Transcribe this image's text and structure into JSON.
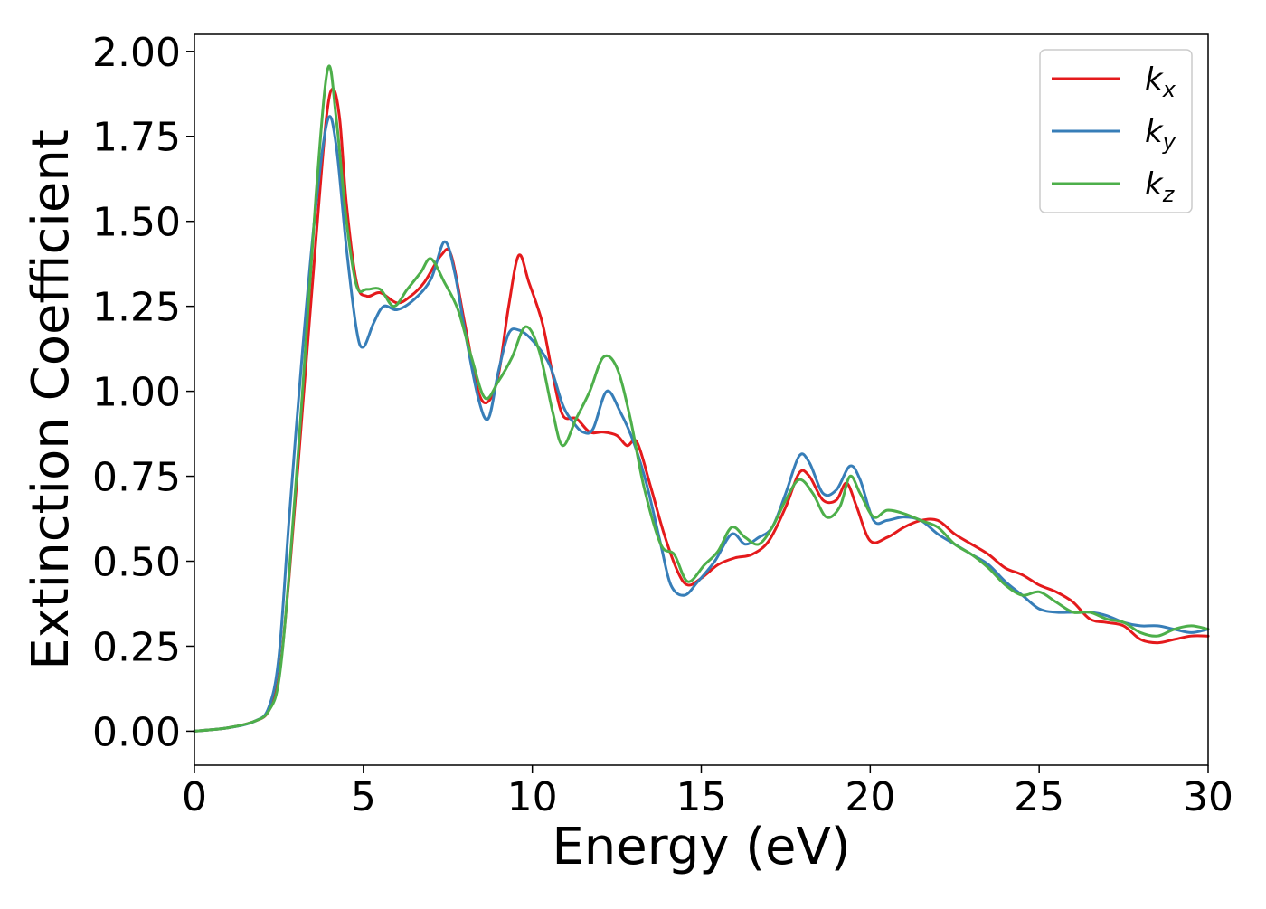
{
  "chart_data": {
    "type": "line",
    "title": "",
    "xlabel": "Energy (eV)",
    "ylabel": "Extinction Coefficient",
    "xlim": [
      0,
      30
    ],
    "ylim": [
      -0.1,
      2.05
    ],
    "x_ticks": [
      0,
      5,
      10,
      15,
      20,
      25,
      30
    ],
    "x_tick_labels": [
      "0",
      "5",
      "10",
      "15",
      "20",
      "25",
      "30"
    ],
    "y_ticks": [
      0,
      0.25,
      0.5,
      0.75,
      1.0,
      1.25,
      1.5,
      1.75,
      2.0
    ],
    "y_tick_labels": [
      "0.00",
      "0.25",
      "0.50",
      "0.75",
      "1.00",
      "1.25",
      "1.50",
      "1.75",
      "2.00"
    ],
    "grid": false,
    "legend_position": "top-right",
    "series": [
      {
        "name": "k_x",
        "legend_base": "k",
        "legend_sub": "x",
        "color": "#e41a1c",
        "points": [
          [
            0,
            0
          ],
          [
            1,
            0.01
          ],
          [
            1.8,
            0.03
          ],
          [
            2.2,
            0.06
          ],
          [
            2.5,
            0.16
          ],
          [
            2.8,
            0.45
          ],
          [
            3.2,
            0.95
          ],
          [
            3.6,
            1.45
          ],
          [
            3.9,
            1.8
          ],
          [
            4.1,
            1.89
          ],
          [
            4.3,
            1.8
          ],
          [
            4.5,
            1.55
          ],
          [
            4.8,
            1.32
          ],
          [
            5.1,
            1.28
          ],
          [
            5.5,
            1.29
          ],
          [
            6,
            1.26
          ],
          [
            6.4,
            1.28
          ],
          [
            6.8,
            1.32
          ],
          [
            7.3,
            1.4
          ],
          [
            7.6,
            1.4
          ],
          [
            8,
            1.2
          ],
          [
            8.4,
            1.0
          ],
          [
            8.7,
            0.97
          ],
          [
            9.0,
            1.05
          ],
          [
            9.3,
            1.25
          ],
          [
            9.6,
            1.4
          ],
          [
            9.9,
            1.32
          ],
          [
            10.3,
            1.2
          ],
          [
            10.6,
            1.05
          ],
          [
            10.9,
            0.93
          ],
          [
            11.3,
            0.92
          ],
          [
            11.7,
            0.88
          ],
          [
            12.1,
            0.88
          ],
          [
            12.5,
            0.87
          ],
          [
            12.8,
            0.84
          ],
          [
            13.1,
            0.85
          ],
          [
            13.5,
            0.72
          ],
          [
            13.9,
            0.58
          ],
          [
            14.3,
            0.47
          ],
          [
            14.6,
            0.43
          ],
          [
            15,
            0.45
          ],
          [
            15.5,
            0.49
          ],
          [
            16,
            0.51
          ],
          [
            16.5,
            0.52
          ],
          [
            17,
            0.56
          ],
          [
            17.5,
            0.66
          ],
          [
            17.9,
            0.76
          ],
          [
            18.2,
            0.75
          ],
          [
            18.6,
            0.68
          ],
          [
            19,
            0.68
          ],
          [
            19.3,
            0.73
          ],
          [
            19.6,
            0.66
          ],
          [
            20,
            0.56
          ],
          [
            20.5,
            0.57
          ],
          [
            21,
            0.6
          ],
          [
            21.5,
            0.62
          ],
          [
            22,
            0.62
          ],
          [
            22.5,
            0.58
          ],
          [
            23,
            0.55
          ],
          [
            23.5,
            0.52
          ],
          [
            24,
            0.48
          ],
          [
            24.5,
            0.46
          ],
          [
            25,
            0.43
          ],
          [
            25.5,
            0.41
          ],
          [
            26,
            0.38
          ],
          [
            26.5,
            0.33
          ],
          [
            27,
            0.32
          ],
          [
            27.5,
            0.31
          ],
          [
            28,
            0.27
          ],
          [
            28.5,
            0.26
          ],
          [
            29,
            0.27
          ],
          [
            29.5,
            0.28
          ],
          [
            30,
            0.28
          ]
        ]
      },
      {
        "name": "k_y",
        "legend_base": "k",
        "legend_sub": "y",
        "color": "#377eb8",
        "points": [
          [
            0,
            0
          ],
          [
            1,
            0.01
          ],
          [
            1.8,
            0.03
          ],
          [
            2.2,
            0.07
          ],
          [
            2.5,
            0.22
          ],
          [
            2.8,
            0.62
          ],
          [
            3.2,
            1.12
          ],
          [
            3.6,
            1.55
          ],
          [
            3.95,
            1.8
          ],
          [
            4.2,
            1.72
          ],
          [
            4.5,
            1.42
          ],
          [
            4.8,
            1.18
          ],
          [
            5.0,
            1.13
          ],
          [
            5.3,
            1.2
          ],
          [
            5.6,
            1.25
          ],
          [
            6,
            1.24
          ],
          [
            6.5,
            1.27
          ],
          [
            7,
            1.33
          ],
          [
            7.4,
            1.44
          ],
          [
            7.7,
            1.35
          ],
          [
            8,
            1.18
          ],
          [
            8.4,
            0.98
          ],
          [
            8.7,
            0.92
          ],
          [
            9.0,
            1.06
          ],
          [
            9.3,
            1.17
          ],
          [
            9.6,
            1.18
          ],
          [
            10,
            1.15
          ],
          [
            10.5,
            1.08
          ],
          [
            10.9,
            0.96
          ],
          [
            11.2,
            0.91
          ],
          [
            11.5,
            0.88
          ],
          [
            11.8,
            0.89
          ],
          [
            12.2,
            1.0
          ],
          [
            12.6,
            0.94
          ],
          [
            13,
            0.85
          ],
          [
            13.4,
            0.72
          ],
          [
            13.8,
            0.55
          ],
          [
            14.1,
            0.43
          ],
          [
            14.5,
            0.4
          ],
          [
            14.9,
            0.44
          ],
          [
            15.4,
            0.5
          ],
          [
            15.9,
            0.58
          ],
          [
            16.3,
            0.55
          ],
          [
            16.7,
            0.57
          ],
          [
            17.1,
            0.6
          ],
          [
            17.5,
            0.7
          ],
          [
            17.9,
            0.81
          ],
          [
            18.2,
            0.79
          ],
          [
            18.6,
            0.7
          ],
          [
            19,
            0.71
          ],
          [
            19.4,
            0.78
          ],
          [
            19.7,
            0.74
          ],
          [
            20.1,
            0.62
          ],
          [
            20.5,
            0.62
          ],
          [
            21,
            0.63
          ],
          [
            21.5,
            0.62
          ],
          [
            22,
            0.58
          ],
          [
            22.5,
            0.55
          ],
          [
            23,
            0.52
          ],
          [
            23.5,
            0.49
          ],
          [
            24,
            0.44
          ],
          [
            24.5,
            0.4
          ],
          [
            25,
            0.36
          ],
          [
            25.5,
            0.35
          ],
          [
            26,
            0.35
          ],
          [
            26.5,
            0.35
          ],
          [
            27,
            0.34
          ],
          [
            27.5,
            0.32
          ],
          [
            28,
            0.31
          ],
          [
            28.5,
            0.31
          ],
          [
            29,
            0.3
          ],
          [
            29.5,
            0.29
          ],
          [
            30,
            0.3
          ]
        ]
      },
      {
        "name": "k_z",
        "legend_base": "k",
        "legend_sub": "z",
        "color": "#4daf4a",
        "points": [
          [
            0,
            0
          ],
          [
            1,
            0.01
          ],
          [
            1.8,
            0.03
          ],
          [
            2.2,
            0.06
          ],
          [
            2.5,
            0.15
          ],
          [
            2.8,
            0.46
          ],
          [
            3.2,
            1.0
          ],
          [
            3.6,
            1.58
          ],
          [
            3.95,
            1.95
          ],
          [
            4.2,
            1.8
          ],
          [
            4.5,
            1.5
          ],
          [
            4.8,
            1.31
          ],
          [
            5.1,
            1.3
          ],
          [
            5.5,
            1.3
          ],
          [
            5.9,
            1.25
          ],
          [
            6.3,
            1.3
          ],
          [
            6.7,
            1.35
          ],
          [
            7.0,
            1.39
          ],
          [
            7.4,
            1.32
          ],
          [
            7.8,
            1.24
          ],
          [
            8.2,
            1.1
          ],
          [
            8.6,
            0.98
          ],
          [
            9.0,
            1.03
          ],
          [
            9.4,
            1.1
          ],
          [
            9.8,
            1.19
          ],
          [
            10.2,
            1.12
          ],
          [
            10.6,
            0.94
          ],
          [
            10.9,
            0.84
          ],
          [
            11.3,
            0.92
          ],
          [
            11.7,
            1.0
          ],
          [
            12.1,
            1.1
          ],
          [
            12.5,
            1.07
          ],
          [
            12.9,
            0.92
          ],
          [
            13.3,
            0.72
          ],
          [
            13.8,
            0.55
          ],
          [
            14.2,
            0.52
          ],
          [
            14.6,
            0.44
          ],
          [
            15.1,
            0.49
          ],
          [
            15.5,
            0.53
          ],
          [
            15.9,
            0.6
          ],
          [
            16.3,
            0.57
          ],
          [
            16.7,
            0.55
          ],
          [
            17.1,
            0.6
          ],
          [
            17.5,
            0.68
          ],
          [
            17.9,
            0.74
          ],
          [
            18.3,
            0.7
          ],
          [
            18.7,
            0.63
          ],
          [
            19.1,
            0.66
          ],
          [
            19.4,
            0.75
          ],
          [
            19.7,
            0.7
          ],
          [
            20.1,
            0.63
          ],
          [
            20.5,
            0.65
          ],
          [
            21,
            0.64
          ],
          [
            21.5,
            0.62
          ],
          [
            22,
            0.6
          ],
          [
            22.5,
            0.55
          ],
          [
            23,
            0.52
          ],
          [
            23.5,
            0.48
          ],
          [
            24,
            0.43
          ],
          [
            24.5,
            0.4
          ],
          [
            25,
            0.41
          ],
          [
            25.5,
            0.38
          ],
          [
            26,
            0.35
          ],
          [
            26.5,
            0.35
          ],
          [
            27,
            0.33
          ],
          [
            27.5,
            0.32
          ],
          [
            28,
            0.29
          ],
          [
            28.5,
            0.28
          ],
          [
            29,
            0.3
          ],
          [
            29.5,
            0.31
          ],
          [
            30,
            0.3
          ]
        ]
      }
    ]
  }
}
